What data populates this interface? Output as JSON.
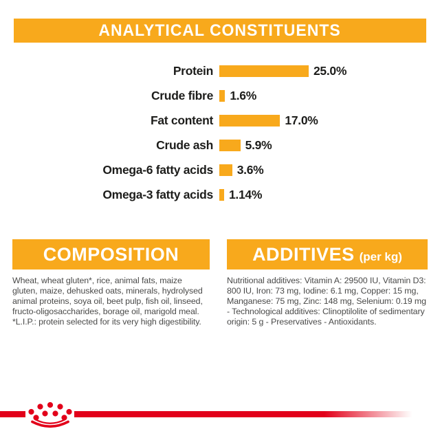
{
  "header": {
    "title": "ANALYTICAL CONSTITUENTS"
  },
  "chart_data": {
    "type": "bar",
    "orientation": "horizontal",
    "title": "ANALYTICAL CONSTITUENTS",
    "unit": "%",
    "categories": [
      "Protein",
      "Crude fibre",
      "Fat content",
      "Crude ash",
      "Omega-6 fatty acids",
      "Omega-3 fatty acids"
    ],
    "values": [
      25.0,
      1.6,
      17.0,
      5.9,
      3.6,
      1.14
    ],
    "value_labels": [
      "25.0%",
      "1.6%",
      "17.0%",
      "5.9%",
      "3.6%",
      "1.14%"
    ],
    "xlim": [
      0,
      25
    ],
    "bar_color": "#F8A91C",
    "grid": false,
    "legend": false
  },
  "sections": {
    "composition": {
      "title": "COMPOSITION",
      "body": "Wheat, wheat gluten*, rice, animal fats, maize gluten, maize, dehusked oats, minerals, hydrolysed animal proteins, soya oil, beet pulp, fish oil, linseed, fructo-oligosaccharides, borage oil, marigold meal.\n*L.I.P.: protein selected for its very high digestibility."
    },
    "additives": {
      "title": "ADDITIVES",
      "title_suffix": "(per kg)",
      "body": "Nutritional additives: Vitamin A: 29500 IU, Vitamin D3: 800 IU, Iron: 73 mg, Iodine: 6.1 mg, Copper: 15 mg, Manganese: 75 mg, Zinc: 148 mg, Selenium: 0.19 mg - Technological additives: Clinoptilolite of sedimentary origin: 5 g - Preservatives - Antioxidants."
    }
  },
  "branding": {
    "logo": "royal-canin-crown",
    "accent_orange": "#F8A91C",
    "accent_red": "#E2001A"
  }
}
